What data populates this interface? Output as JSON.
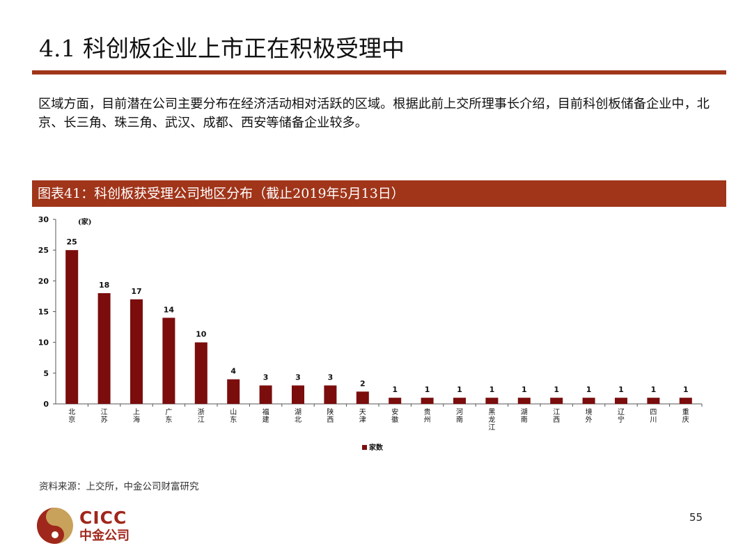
{
  "page": {
    "title": "4.1 科创板企业上市正在积极受理中",
    "description": "区域方面，目前潜在公司主要分布在经济活动相对活跃的区域。根据此前上交所理事长介绍，目前科创板储备企业中，北京、长三角、珠三角、武汉、成都、西安等储备企业较多。",
    "figure_title": "图表41：科创板获受理公司地区分布（截止2019年5月13日）",
    "source": "资料来源：上交所，中金公司财富研究",
    "logo_name": "CICC",
    "logo_cn": "中金公司",
    "page_number": "55"
  },
  "colors": {
    "accent": "#a0351a",
    "bar": "#7b0d0d",
    "logo_gold": "#c8a15a",
    "logo_red": "#a0271b"
  },
  "chart_data": {
    "type": "bar",
    "ylabel": "(家)",
    "ylim": [
      0,
      30
    ],
    "yticks": [
      0,
      5,
      10,
      15,
      20,
      25,
      30
    ],
    "grid": false,
    "legend_position": "bottom-center",
    "categories": [
      "北京",
      "江苏",
      "上海",
      "广东",
      "浙江",
      "山东",
      "福建",
      "湖北",
      "陕西",
      "天津",
      "安徽",
      "贵州",
      "河南",
      "黑龙江",
      "湖南",
      "江西",
      "境外",
      "辽宁",
      "四川",
      "重庆"
    ],
    "series": [
      {
        "name": "家数",
        "values": [
          25,
          18,
          17,
          14,
          10,
          4,
          3,
          3,
          3,
          2,
          1,
          1,
          1,
          1,
          1,
          1,
          1,
          1,
          1,
          1
        ]
      }
    ]
  }
}
